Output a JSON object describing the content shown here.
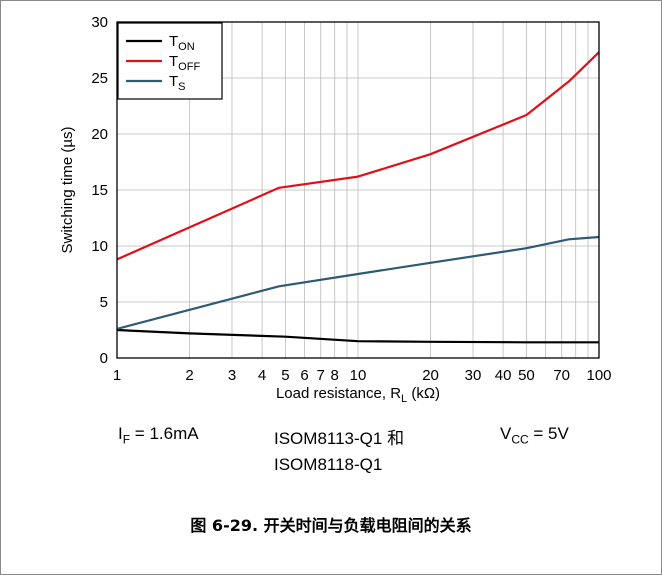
{
  "chart_data": {
    "type": "line",
    "x_scale": "log",
    "x_range": [
      1,
      100
    ],
    "y_range": [
      0,
      30
    ],
    "grid": true,
    "legend_placement": "top-left",
    "ylabel": "Switching time (µs)",
    "xlabel": "Load resistance, RL (kΩ)",
    "xlabel_parts": {
      "main": "Load resistance, R",
      "sub": "L",
      "tail": " (kΩ)"
    },
    "x_ticks": [
      1,
      2,
      3,
      4,
      5,
      6,
      7,
      8,
      10,
      20,
      30,
      40,
      50,
      70,
      100
    ],
    "x_tick_labels": [
      "1",
      "2",
      "3",
      "4",
      "5",
      "6",
      "7",
      "8",
      "10",
      "20",
      "30",
      "40",
      "50",
      "70",
      "100"
    ],
    "y_ticks": [
      0,
      5,
      10,
      15,
      20,
      25,
      30
    ],
    "y_tick_labels": [
      "0",
      "5",
      "10",
      "15",
      "20",
      "25",
      "30"
    ],
    "series": [
      {
        "name": "TON",
        "label_main": "T",
        "label_sub": "ON",
        "color": "#000000",
        "x": [
          1,
          2,
          5,
          10,
          20,
          50,
          100
        ],
        "y": [
          2.5,
          2.2,
          1.9,
          1.5,
          1.45,
          1.4,
          1.4
        ]
      },
      {
        "name": "TOFF",
        "label_main": "T",
        "label_sub": "OFF",
        "color": "#e0101a",
        "x": [
          1,
          4.7,
          10,
          20,
          50,
          75,
          100
        ],
        "y": [
          8.8,
          15.2,
          16.2,
          18.2,
          21.7,
          24.7,
          27.3
        ]
      },
      {
        "name": "TS",
        "label_main": "T",
        "label_sub": "S",
        "color": "#2e5a72",
        "x": [
          1,
          4.7,
          10,
          20,
          50,
          75,
          100
        ],
        "y": [
          2.6,
          6.4,
          7.5,
          8.5,
          9.8,
          10.6,
          10.8
        ]
      }
    ]
  },
  "conditions": {
    "if_main": "I",
    "if_sub": "F",
    "if_value": " = 1.6mA",
    "device_line1": "ISOM8113-Q1 和",
    "device_line2": "ISOM8118-Q1",
    "vcc_main": "V",
    "vcc_sub": "CC",
    "vcc_value": " = 5V"
  },
  "caption": "图 6-29. 开关时间与负载电阻间的关系",
  "colors": {
    "frame": "#8a8a8a",
    "grid": "#c8c8c8",
    "axis": "#000000"
  }
}
